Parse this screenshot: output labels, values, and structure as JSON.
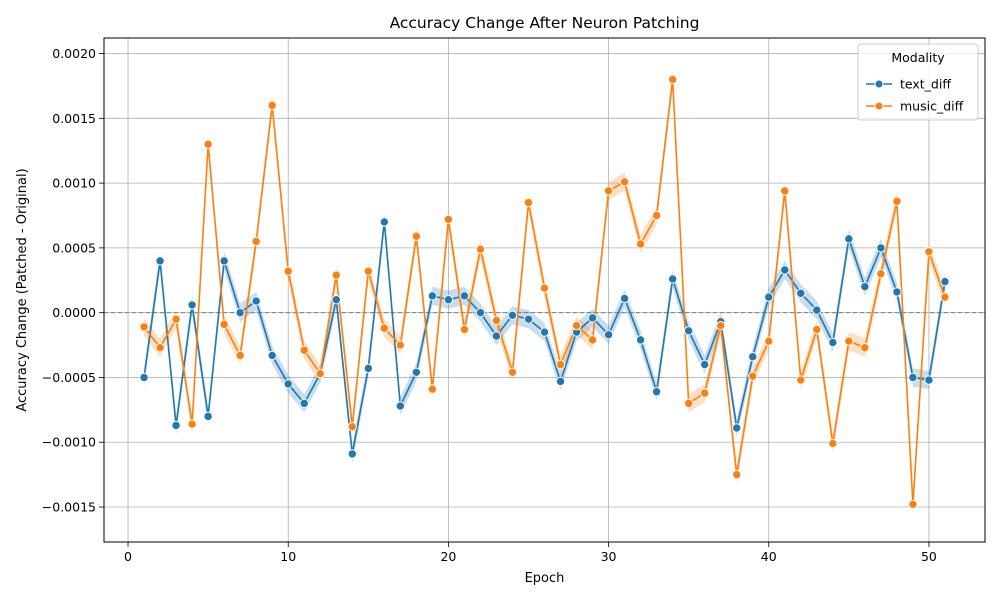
{
  "chart_data": {
    "type": "line",
    "title": "Accuracy Change After Neuron Patching",
    "xlabel": "Epoch",
    "ylabel": "Accuracy Change (Patched - Original)",
    "xlim": [
      -1.5,
      53.5
    ],
    "ylim": [
      -0.00177,
      0.00212
    ],
    "x_ticks": [
      0,
      10,
      20,
      30,
      40,
      50
    ],
    "x_tick_labels": [
      "0",
      "10",
      "20",
      "30",
      "40",
      "50"
    ],
    "y_ticks": [
      -0.0015,
      -0.001,
      -0.0005,
      0,
      0.0005,
      0.001,
      0.0015,
      0.002
    ],
    "y_tick_labels": [
      "−0.0015",
      "−0.0010",
      "−0.0005",
      "0.0000",
      "0.0005",
      "0.0010",
      "0.0015",
      "0.0020"
    ],
    "grid": true,
    "reference_line": 0,
    "legend": {
      "title": "Modality",
      "placement": "top-right"
    },
    "x": [
      1,
      2,
      3,
      4,
      5,
      6,
      7,
      8,
      9,
      10,
      11,
      12,
      13,
      14,
      15,
      16,
      17,
      18,
      19,
      20,
      21,
      22,
      23,
      24,
      25,
      26,
      27,
      28,
      29,
      30,
      31,
      32,
      33,
      34,
      35,
      36,
      37,
      38,
      39,
      40,
      41,
      42,
      43,
      44,
      45,
      46,
      47,
      48,
      49,
      50,
      51
    ],
    "series": [
      {
        "name": "text_diff",
        "color": "#1f77b4",
        "values": [
          -0.0005,
          0.0004,
          -0.00087,
          6e-05,
          -0.0008,
          0.0004,
          0.0,
          9e-05,
          -0.00033,
          -0.00055,
          -0.0007,
          -0.00047,
          0.0001,
          -0.00109,
          -0.00043,
          0.0007,
          -0.00072,
          -0.00046,
          0.00013,
          0.0001,
          0.00013,
          0.0,
          -0.00018,
          -2e-05,
          -5e-05,
          -0.00015,
          -0.00053,
          -0.00015,
          -4e-05,
          -0.00017,
          0.00011,
          -0.00021,
          -0.00061,
          0.00026,
          -0.00014,
          -0.0004,
          -7e-05,
          -0.00089,
          -0.00034,
          0.00012,
          0.00033,
          0.00015,
          2e-05,
          -0.00023,
          0.00057,
          0.0002,
          0.0005,
          0.00016,
          -0.0005,
          -0.00052,
          0.00024
        ]
      },
      {
        "name": "music_diff",
        "color": "#ff7f0e",
        "values": [
          -0.00011,
          -0.00027,
          -5e-05,
          -0.00086,
          0.0013,
          -9e-05,
          -0.00033,
          0.00055,
          0.0016,
          0.00032,
          -0.00029,
          -0.00047,
          0.00029,
          -0.00088,
          0.00032,
          -0.00012,
          -0.00025,
          0.00059,
          -0.00059,
          0.00072,
          -0.00013,
          0.00049,
          -6e-05,
          -0.00046,
          0.00085,
          0.00019,
          -0.0004,
          -0.0001,
          -0.00021,
          0.00094,
          0.00101,
          0.00053,
          0.00075,
          0.0018,
          -0.0007,
          -0.00062,
          -0.0001,
          -0.00125,
          -0.00049,
          -0.00022,
          0.00094,
          -0.00052,
          -0.00013,
          -0.00101,
          -0.00022,
          -0.00027,
          0.0003,
          0.00086,
          -0.00148,
          0.00047,
          0.00012
        ]
      }
    ]
  }
}
